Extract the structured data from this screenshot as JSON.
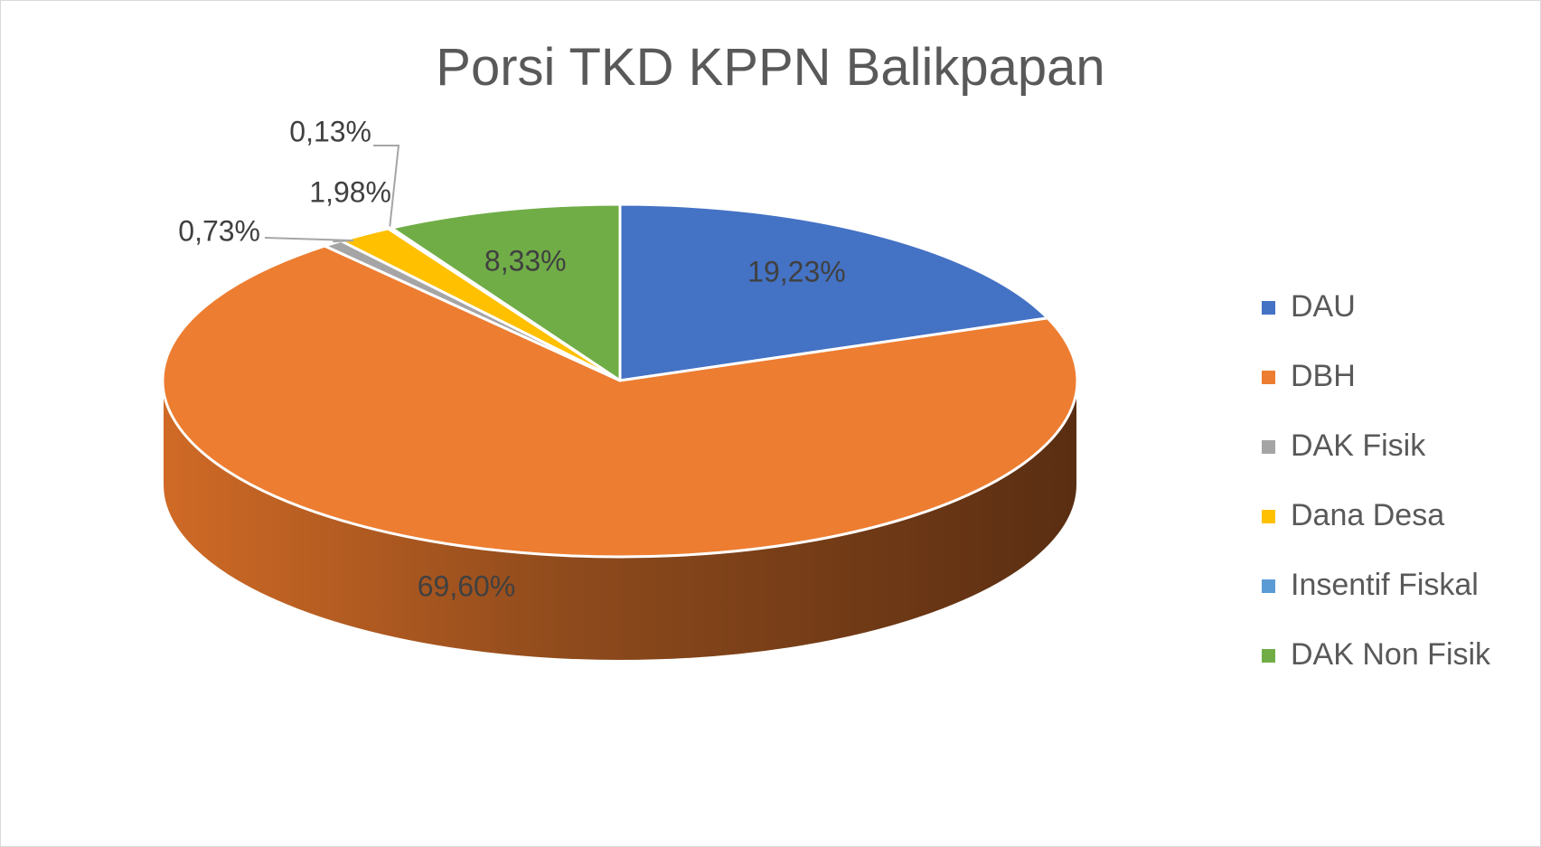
{
  "chart_data": {
    "type": "pie",
    "title": "Porsi TKD KPPN Balikpapan",
    "categories": [
      "DAU",
      "DBH",
      "DAK Fisik",
      "Dana Desa",
      "Insentif Fiskal",
      "DAK Non Fisik"
    ],
    "values": [
      19.23,
      69.6,
      0.73,
      1.98,
      0.13,
      8.33
    ],
    "labels": [
      "19,23%",
      "69,60%",
      "0,73%",
      "1,98%",
      "0,13%",
      "8,33%"
    ],
    "colors": [
      "#4472c4",
      "#ed7d31",
      "#a5a5a5",
      "#ffc000",
      "#5b9bd5",
      "#70ad47"
    ],
    "legend_position": "right",
    "style": "3d"
  }
}
